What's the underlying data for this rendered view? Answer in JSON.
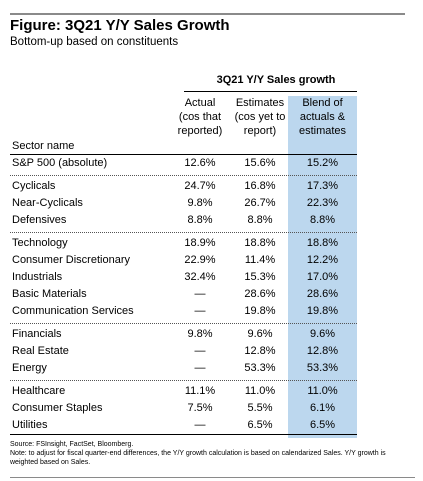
{
  "figure": {
    "title": "Figure: 3Q21 Y/Y Sales Growth",
    "subtitle": "Bottom-up based on constituents"
  },
  "table": {
    "group_title": "3Q21 Y/Y Sales growth",
    "columns": {
      "actual": [
        "Actual",
        "(cos that",
        "reported)"
      ],
      "estimates": [
        "Estimates",
        "(cos yet to",
        "report)"
      ],
      "blend": [
        "Blend of",
        "actuals &",
        "estimates"
      ]
    },
    "sector_header": "Sector name",
    "rows": [
      {
        "name": "S&P 500 (absolute)",
        "actual": "12.6%",
        "estimates": "15.6%",
        "blend": "15.2%"
      },
      {
        "name": "Cyclicals",
        "actual": "24.7%",
        "estimates": "16.8%",
        "blend": "17.3%"
      },
      {
        "name": "Near-Cyclicals",
        "actual": "9.8%",
        "estimates": "26.7%",
        "blend": "22.3%"
      },
      {
        "name": "Defensives",
        "actual": "8.8%",
        "estimates": "8.8%",
        "blend": "8.8%"
      },
      {
        "name": "Technology",
        "actual": "18.9%",
        "estimates": "18.8%",
        "blend": "18.8%"
      },
      {
        "name": "Consumer Discretionary",
        "actual": "22.9%",
        "estimates": "11.4%",
        "blend": "12.2%"
      },
      {
        "name": "Industrials",
        "actual": "32.4%",
        "estimates": "15.3%",
        "blend": "17.0%"
      },
      {
        "name": "Basic Materials",
        "actual": "—",
        "estimates": "28.6%",
        "blend": "28.6%"
      },
      {
        "name": "Communication Services",
        "actual": "—",
        "estimates": "19.8%",
        "blend": "19.8%"
      },
      {
        "name": "Financials",
        "actual": "9.8%",
        "estimates": "9.6%",
        "blend": "9.6%"
      },
      {
        "name": "Real Estate",
        "actual": "—",
        "estimates": "12.8%",
        "blend": "12.8%"
      },
      {
        "name": "Energy",
        "actual": "—",
        "estimates": "53.3%",
        "blend": "53.3%"
      },
      {
        "name": "Healthcare",
        "actual": "11.1%",
        "estimates": "11.0%",
        "blend": "11.0%"
      },
      {
        "name": "Consumer Staples",
        "actual": "7.5%",
        "estimates": "5.5%",
        "blend": "6.1%"
      },
      {
        "name": "Utilities",
        "actual": "—",
        "estimates": "6.5%",
        "blend": "6.5%"
      }
    ]
  },
  "notes": {
    "source": "Source: FSInsight, FactSet, Bloomberg.",
    "note": "Note: to adjust for fiscal quarter-end differences, the Y/Y growth calculation is based on calendarized Sales. Y/Y growth is weighted based on Sales."
  },
  "colors": {
    "blend_highlight": "#bcd7ee"
  }
}
